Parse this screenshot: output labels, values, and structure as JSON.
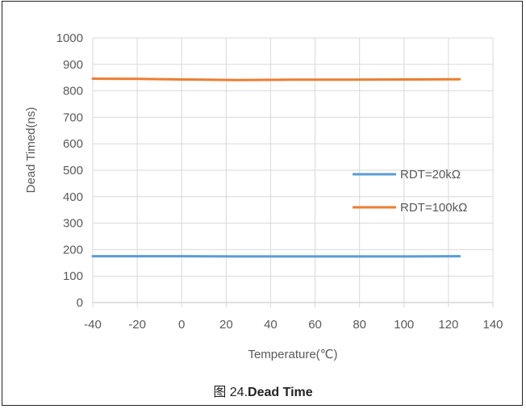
{
  "chart_data": {
    "type": "line",
    "title": "",
    "xlabel": "Temperature(℃)",
    "ylabel": "Dead Timed(ns)",
    "xlim": [
      -40,
      140
    ],
    "ylim": [
      0,
      1000
    ],
    "xticks": [
      "-40",
      "-20",
      "0",
      "20",
      "40",
      "60",
      "80",
      "100",
      "120",
      "140"
    ],
    "yticks": [
      "0",
      "100",
      "200",
      "300",
      "400",
      "500",
      "600",
      "700",
      "800",
      "900",
      "1000"
    ],
    "grid": true,
    "legend": "right",
    "series": [
      {
        "name": "RDT=20kΩ",
        "color": "#5B9BD5",
        "x": [
          -40,
          -20,
          0,
          25,
          50,
          75,
          100,
          125
        ],
        "y": [
          175,
          175,
          175,
          174,
          174,
          174,
          174,
          175
        ]
      },
      {
        "name": "RDT=100kΩ",
        "color": "#ED7D31",
        "x": [
          -40,
          -20,
          0,
          25,
          50,
          75,
          100,
          125
        ],
        "y": [
          846,
          845,
          843,
          841,
          842,
          842,
          843,
          844
        ]
      }
    ]
  },
  "caption": {
    "prefix": "图 24.",
    "text": "Dead Time"
  }
}
